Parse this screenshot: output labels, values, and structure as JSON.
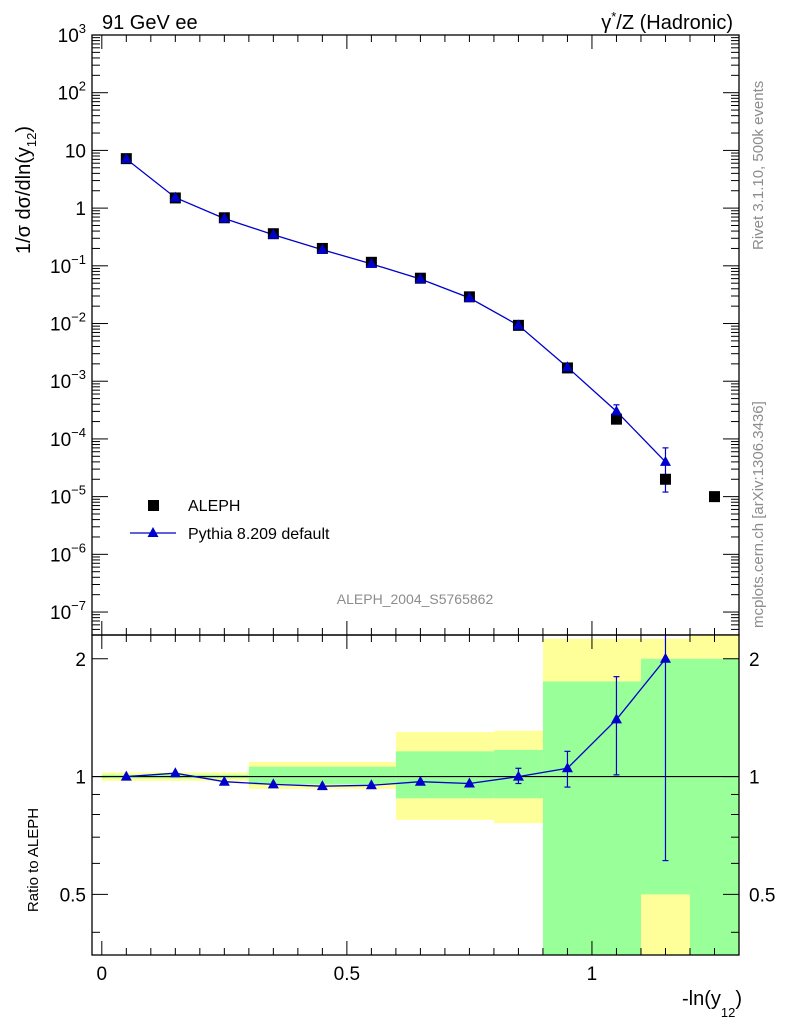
{
  "header": {
    "left": "91 GeV ee",
    "right": "γ*/Z (Hadronic)"
  },
  "side_text": {
    "rivet": "Rivet 3.1.10,  500k events",
    "mcplots": "mcplots.cern.ch [arXiv:1306.3436]"
  },
  "watermark": "ALEPH_2004_S5765862",
  "chart_data": [
    {
      "type": "scatter",
      "ylabel": "1/σ  dσ/dln(y12)",
      "yscale": "log",
      "ylim": [
        4e-08,
        1000
      ],
      "xlim": [
        -0.02,
        1.3
      ],
      "yticks": [
        {
          "v": 1000,
          "m": "10",
          "e": "3"
        },
        {
          "v": 100,
          "m": "10",
          "e": "2"
        },
        {
          "v": 10,
          "m": "10",
          "e": ""
        },
        {
          "v": 1,
          "m": "1",
          "e": ""
        },
        {
          "v": 0.1,
          "m": "10",
          "e": "−1"
        },
        {
          "v": 0.01,
          "m": "10",
          "e": "−2"
        },
        {
          "v": 0.001,
          "m": "10",
          "e": "−3"
        },
        {
          "v": 0.0001,
          "m": "10",
          "e": "−4"
        },
        {
          "v": 1e-05,
          "m": "10",
          "e": "−5"
        },
        {
          "v": 1e-06,
          "m": "10",
          "e": "−6"
        },
        {
          "v": 1e-07,
          "m": "10",
          "e": "−7"
        }
      ],
      "legend": "left-lower",
      "series": [
        {
          "name": "ALEPH",
          "color": "#000000",
          "marker": "square",
          "x": [
            0.05,
            0.15,
            0.25,
            0.35,
            0.45,
            0.55,
            0.65,
            0.75,
            0.85,
            0.95,
            1.05,
            1.15,
            1.25
          ],
          "y": [
            7.2,
            1.5,
            0.68,
            0.36,
            0.2,
            0.115,
            0.061,
            0.029,
            0.0093,
            0.0017,
            0.00022,
            2e-05,
            1e-05
          ]
        },
        {
          "name": "Pythia 8.209 default",
          "color": "#0000cc",
          "marker": "triangle",
          "x": [
            0.05,
            0.15,
            0.25,
            0.35,
            0.45,
            0.55,
            0.65,
            0.75,
            0.85,
            0.95,
            1.05,
            1.15
          ],
          "y": [
            7.1,
            1.52,
            0.66,
            0.345,
            0.19,
            0.108,
            0.059,
            0.0278,
            0.0093,
            0.00175,
            0.0003,
            4e-05
          ],
          "err_lo": [
            null,
            null,
            null,
            null,
            null,
            null,
            null,
            null,
            null,
            null,
            0.00023,
            1.2e-05
          ],
          "err_hi": [
            null,
            null,
            null,
            null,
            null,
            null,
            null,
            null,
            null,
            null,
            0.00039,
            7e-05
          ]
        }
      ]
    },
    {
      "type": "scatter",
      "xlabel": "-ln(y12)",
      "ylabel": "Ratio to ALEPH",
      "yscale": "log",
      "ylim": [
        0.35,
        2.3
      ],
      "xlim": [
        -0.02,
        1.3
      ],
      "xticks": [
        0,
        0.5,
        1
      ],
      "yticks": [
        0.5,
        1,
        2
      ],
      "reference": 1,
      "bands": [
        {
          "x0": 0.0,
          "x1": 0.3,
          "yellow": [
            0.975,
            1.025
          ],
          "green": [
            0.99,
            1.01
          ]
        },
        {
          "x0": 0.3,
          "x1": 0.6,
          "yellow": [
            0.93,
            1.09
          ],
          "green": [
            0.955,
            1.06
          ]
        },
        {
          "x0": 0.6,
          "x1": 0.8,
          "yellow": [
            0.775,
            1.3
          ],
          "green": [
            0.88,
            1.16
          ]
        },
        {
          "x0": 0.8,
          "x1": 0.9,
          "yellow": [
            0.76,
            1.31
          ],
          "green": [
            0.88,
            1.17
          ]
        },
        {
          "x0": 0.9,
          "x1": 1.1,
          "yellow": [
            0.35,
            2.25
          ],
          "green": [
            0.35,
            1.75
          ]
        },
        {
          "x0": 1.1,
          "x1": 1.2,
          "yellow": [
            0.35,
            2.25
          ],
          "green": [
            0.5,
            2.0
          ]
        },
        {
          "x0": 1.2,
          "x1": 1.3,
          "yellow": [
            0.35,
            2.3
          ],
          "green": [
            0.35,
            2.0
          ]
        }
      ],
      "series": [
        {
          "name": "Pythia 8.209 default",
          "color": "#0000cc",
          "x": [
            0.05,
            0.15,
            0.25,
            0.35,
            0.45,
            0.55,
            0.65,
            0.75,
            0.85,
            0.95,
            1.05,
            1.15
          ],
          "y": [
            1.0,
            1.02,
            0.97,
            0.955,
            0.945,
            0.95,
            0.97,
            0.96,
            1.0,
            1.05,
            1.4,
            2.0
          ],
          "err_lo": [
            null,
            null,
            null,
            null,
            null,
            null,
            null,
            null,
            0.96,
            0.94,
            1.01,
            0.61
          ],
          "err_hi": [
            null,
            null,
            null,
            null,
            null,
            null,
            null,
            null,
            1.05,
            1.16,
            1.8,
            2.35
          ]
        }
      ]
    }
  ]
}
